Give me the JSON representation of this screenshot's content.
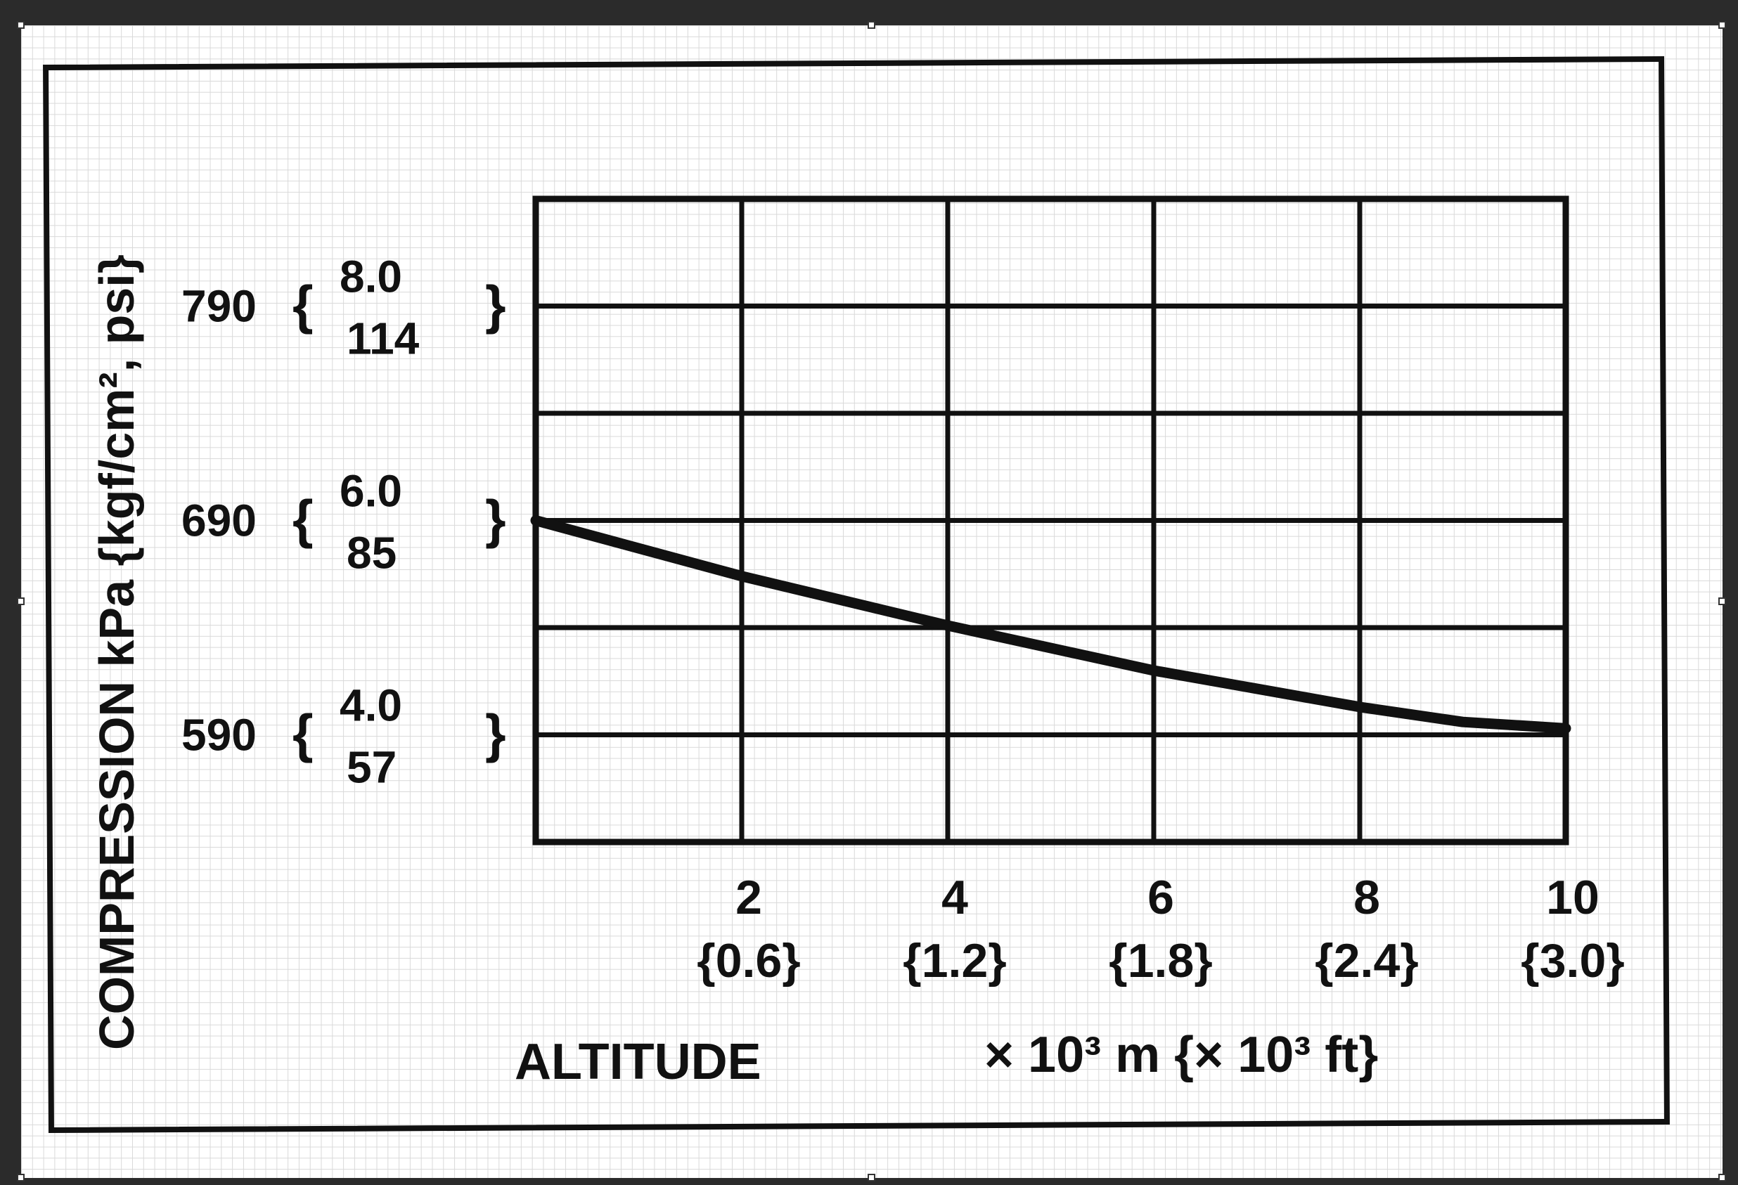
{
  "chart_data": {
    "type": "line",
    "xlabel": "ALTITUDE",
    "x_unit_label": "× 10³ m {× 10³ ft}",
    "ylabel": "COMPRESSION kPa {kgf/cm², psi}",
    "x_ticks": [
      {
        "value": 2,
        "primary": "2",
        "secondary": "{0.6}"
      },
      {
        "value": 4,
        "primary": "4",
        "secondary": "{1.2}"
      },
      {
        "value": 6,
        "primary": "6",
        "secondary": "{1.8}"
      },
      {
        "value": 8,
        "primary": "8",
        "secondary": "{2.4}"
      },
      {
        "value": 10,
        "primary": "10",
        "secondary": "{3.0}"
      }
    ],
    "y_ticks": [
      {
        "value": 790,
        "kpa": "790",
        "kgf": "8.0",
        "psi": "114"
      },
      {
        "value": 690,
        "kpa": "690",
        "kgf": "6.0",
        "psi": "85"
      },
      {
        "value": 590,
        "kpa": "590",
        "kgf": "4.0",
        "psi": "57"
      }
    ],
    "xlim": [
      0,
      10
    ],
    "ylim": [
      540,
      840
    ],
    "grid": true,
    "series": [
      {
        "x": [
          0,
          2,
          4,
          6,
          8,
          9,
          10
        ],
        "y": [
          690,
          664,
          641,
          620,
          603,
          596,
          593
        ]
      }
    ]
  }
}
